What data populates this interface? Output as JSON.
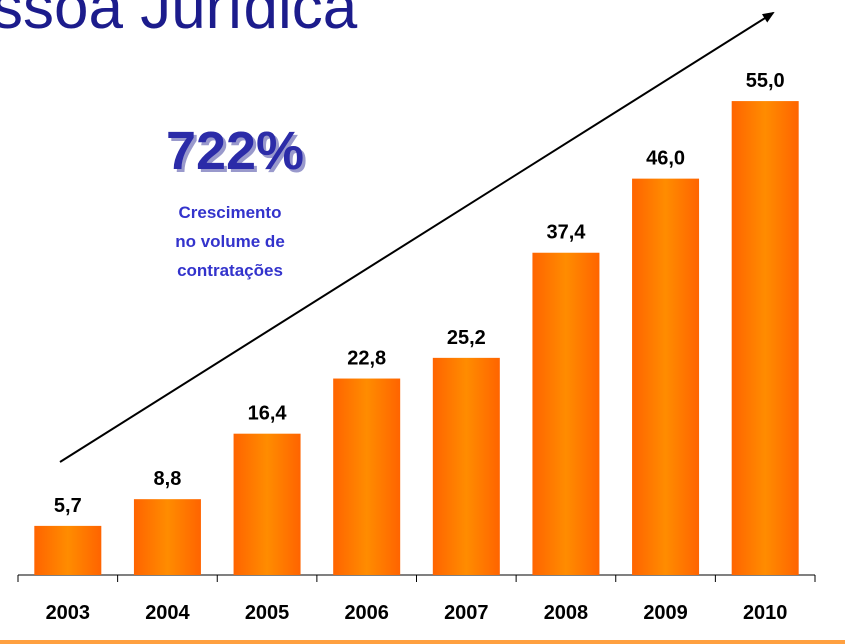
{
  "chart_data": {
    "type": "bar",
    "title": "ssoa Jurídica",
    "annotation": {
      "headline": "722%",
      "lines": [
        "Crescimento",
        "no volume de",
        "contratações"
      ]
    },
    "categories": [
      "2003",
      "2004",
      "2005",
      "2006",
      "2007",
      "2008",
      "2009",
      "2010"
    ],
    "values": [
      5.7,
      8.8,
      16.4,
      22.8,
      25.2,
      37.4,
      46.0,
      55.0
    ],
    "value_labels": [
      "5,7",
      "8,8",
      "16,4",
      "22,8",
      "25,2",
      "37,4",
      "46,0",
      "55,0"
    ],
    "color": "#ff8c00",
    "ylim": [
      0,
      60
    ]
  }
}
